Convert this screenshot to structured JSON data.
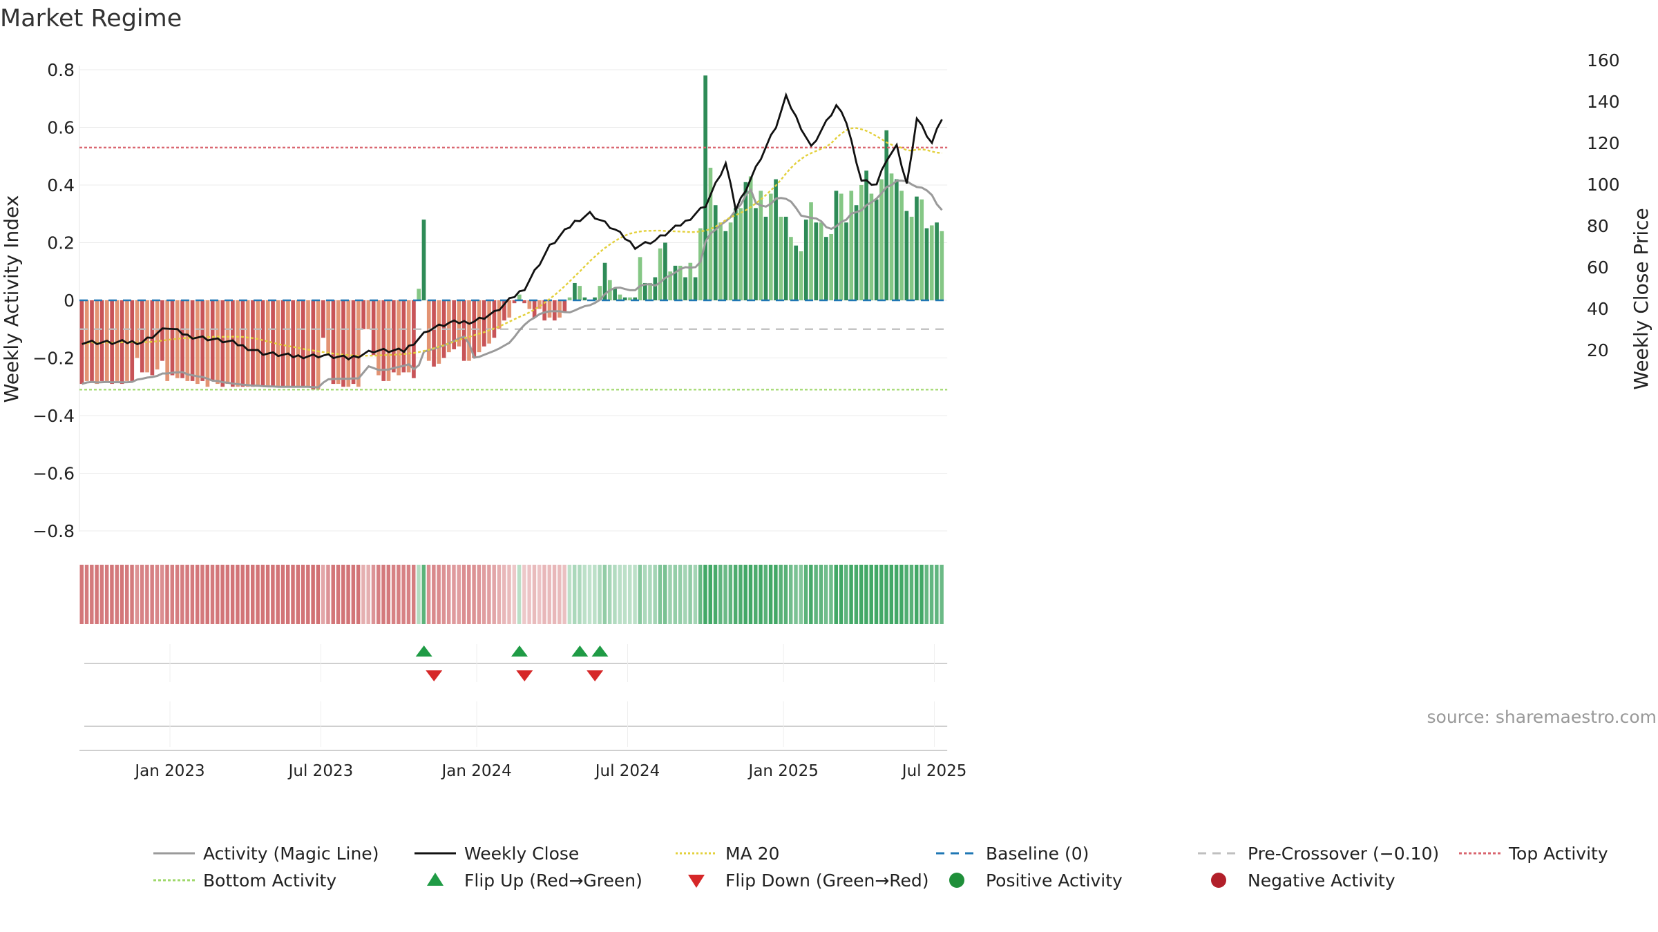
{
  "chart_data": {
    "type": "bar+line",
    "title": "Market Regime",
    "ylabel_left": "Weekly Activity Index",
    "ylabel_right": "Weekly Close Price",
    "source": "source: sharemaestro.com",
    "y_left_ticks": [
      "0.8",
      "0.6",
      "0.4",
      "0.2",
      "0",
      "−0.2",
      "−0.4",
      "−0.6",
      "−0.8"
    ],
    "y_left_tick_values": [
      0.8,
      0.6,
      0.4,
      0.2,
      0,
      -0.2,
      -0.4,
      -0.6,
      -0.8
    ],
    "y_right_ticks": [
      "160",
      "140",
      "120",
      "100",
      "80",
      "60",
      "40",
      "20"
    ],
    "y_right_tick_values": [
      160,
      140,
      120,
      100,
      80,
      60,
      40,
      20
    ],
    "ylim_left": [
      -0.85,
      0.82
    ],
    "ylim_right": [
      15,
      160
    ],
    "x_ticks": [
      "Jan 2023",
      "Jul 2023",
      "Jan 2024",
      "Jul 2024",
      "Jan 2025",
      "Jul 2025"
    ],
    "x_tick_week_index": [
      18,
      48,
      79,
      109,
      140,
      170
    ],
    "lines": {
      "top_activity": 0.53,
      "bottom_activity": -0.31,
      "baseline": 0,
      "pre_crossover": -0.1
    },
    "activity": [
      -0.29,
      -0.28,
      -0.28,
      -0.29,
      -0.28,
      -0.28,
      -0.29,
      -0.28,
      -0.29,
      -0.28,
      -0.28,
      -0.2,
      -0.25,
      -0.25,
      -0.26,
      -0.24,
      -0.21,
      -0.28,
      -0.26,
      -0.27,
      -0.27,
      -0.28,
      -0.28,
      -0.29,
      -0.28,
      -0.3,
      -0.28,
      -0.29,
      -0.3,
      -0.29,
      -0.3,
      -0.3,
      -0.3,
      -0.3,
      -0.3,
      -0.3,
      -0.3,
      -0.3,
      -0.3,
      -0.3,
      -0.3,
      -0.3,
      -0.3,
      -0.3,
      -0.3,
      -0.3,
      -0.31,
      -0.31,
      -0.13,
      -0.19,
      -0.29,
      -0.29,
      -0.3,
      -0.3,
      -0.29,
      -0.3,
      -0.1,
      -0.1,
      -0.19,
      -0.26,
      -0.28,
      -0.28,
      -0.25,
      -0.26,
      -0.25,
      -0.25,
      -0.27,
      0.04,
      0.28,
      -0.21,
      -0.23,
      -0.22,
      -0.2,
      -0.18,
      -0.17,
      -0.16,
      -0.21,
      -0.21,
      -0.2,
      -0.18,
      -0.16,
      -0.15,
      -0.13,
      -0.1,
      -0.07,
      -0.06,
      -0.01,
      0.02,
      -0.01,
      -0.03,
      -0.06,
      -0.03,
      -0.07,
      -0.06,
      -0.07,
      -0.06,
      -0.04,
      0.01,
      0.06,
      0.05,
      0.01,
      0.0,
      0.01,
      0.05,
      0.13,
      0.07,
      0.04,
      0.02,
      0.01,
      0.01,
      0.01,
      0.15,
      0.06,
      0.06,
      0.08,
      0.18,
      0.2,
      0.1,
      0.12,
      0.12,
      0.08,
      0.13,
      0.08,
      0.25,
      0.78,
      0.46,
      0.33,
      0.27,
      0.24,
      0.27,
      0.32,
      0.32,
      0.41,
      0.43,
      0.32,
      0.38,
      0.29,
      0.37,
      0.42,
      0.29,
      0.29,
      0.22,
      0.19,
      0.17,
      0.28,
      0.34,
      0.27,
      0.27,
      0.22,
      0.23,
      0.38,
      0.37,
      0.27,
      0.38,
      0.33,
      0.4,
      0.45,
      0.37,
      0.35,
      0.42,
      0.59,
      0.44,
      0.42,
      0.38,
      0.31,
      0.29,
      0.36,
      0.35,
      0.25,
      0.26,
      0.27,
      0.24
    ],
    "colors": {
      "strong_negative": "#c85458",
      "weak_negative": "#e39373",
      "strong_positive": "#2e8b57",
      "weak_positive": "#85c785",
      "magic_line": "#9a9a9a",
      "weekly_close": "#111111",
      "ma20": "#e3d03b",
      "baseline": "#1f77b4",
      "pre_crossover": "#bfbfbf",
      "top_activity": "#d9646e",
      "bottom_activity": "#9fd86b",
      "flip_up": "#1f9b45",
      "flip_down": "#d62728"
    },
    "flip_up_week_index": [
      68,
      87,
      99,
      103
    ],
    "flip_down_week_index": [
      70,
      88,
      102
    ]
  },
  "legend": {
    "items": [
      {
        "label": "Activity (Magic Line)",
        "kind": "line",
        "color": "#9a9a9a",
        "dash": ""
      },
      {
        "label": "Weekly Close",
        "kind": "line",
        "color": "#111111",
        "dash": ""
      },
      {
        "label": "MA 20",
        "kind": "line",
        "color": "#e3d03b",
        "dash": "3,3"
      },
      {
        "label": "Baseline (0)",
        "kind": "line",
        "color": "#1f77b4",
        "dash": "12,9"
      },
      {
        "label": "Pre-Crossover (−0.10)",
        "kind": "line",
        "color": "#bfbfbf",
        "dash": "12,9"
      },
      {
        "label": "Top Activity",
        "kind": "line",
        "color": "#d9646e",
        "dash": "4,3"
      },
      {
        "label": "Bottom Activity",
        "kind": "line",
        "color": "#9fd86b",
        "dash": "4,3"
      },
      {
        "label": "Flip Up (Red→Green)",
        "kind": "tri-up",
        "color": "#1f9b45",
        "dash": ""
      },
      {
        "label": "Flip Down (Green→Red)",
        "kind": "tri-down",
        "color": "#d62728",
        "dash": ""
      },
      {
        "label": "Positive Activity",
        "kind": "dot",
        "color": "#1f8f3a",
        "dash": ""
      },
      {
        "label": "Negative Activity",
        "kind": "dot",
        "color": "#b2202a",
        "dash": ""
      }
    ]
  }
}
